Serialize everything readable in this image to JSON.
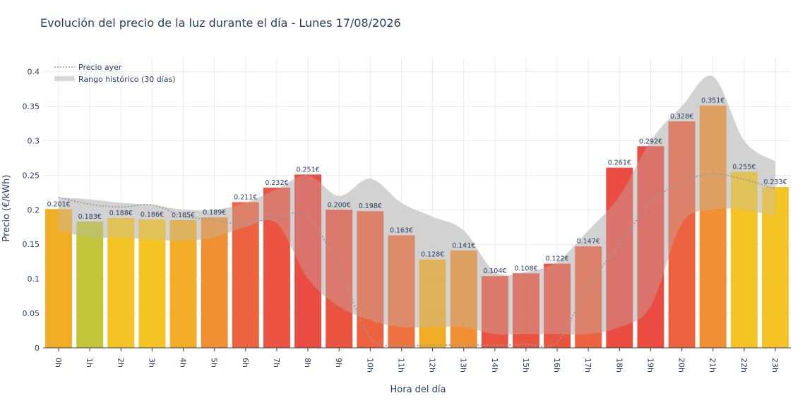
{
  "chart_data": {
    "type": "bar",
    "title": "Evolución del precio de la luz durante el día - Lunes 17/08/2026",
    "xlabel": "Hora del día",
    "ylabel": "Precio (€/kWh)",
    "ylim": [
      0,
      0.42
    ],
    "yticks": [
      0,
      0.05,
      0.1,
      0.15,
      0.2,
      0.25,
      0.3,
      0.35,
      0.4
    ],
    "ytick_labels": [
      "0",
      "0.05",
      "0.1",
      "0.15",
      "0.2",
      "0.25",
      "0.3",
      "0.35",
      "0.4"
    ],
    "grid": true,
    "legend_position": "top-left",
    "categories": [
      "0h",
      "1h",
      "2h",
      "3h",
      "4h",
      "5h",
      "6h",
      "7h",
      "8h",
      "9h",
      "10h",
      "11h",
      "12h",
      "13h",
      "14h",
      "15h",
      "16h",
      "17h",
      "18h",
      "19h",
      "20h",
      "21h",
      "22h",
      "23h"
    ],
    "series": [
      {
        "name": "",
        "values": [
          0.201,
          0.183,
          0.188,
          0.186,
          0.185,
          0.189,
          0.211,
          0.232,
          0.251,
          0.2,
          0.198,
          0.163,
          0.128,
          0.141,
          0.104,
          0.108,
          0.122,
          0.147,
          0.261,
          0.292,
          0.328,
          0.351,
          0.255,
          0.233
        ],
        "labels": [
          "0.201€",
          "0.183€",
          "0.188€",
          "0.186€",
          "0.185€",
          "0.189€",
          "0.211€",
          "0.232€",
          "0.251€",
          "0.200€",
          "0.198€",
          "0.163€",
          "0.128€",
          "0.141€",
          "0.104€",
          "0.108€",
          "0.122€",
          "0.147€",
          "0.261€",
          "0.292€",
          "0.328€",
          "0.351€",
          "0.255€",
          "0.233€"
        ],
        "colors": [
          "#f0a91a",
          "#bfc22e",
          "#f2c118",
          "#f2c118",
          "#f0a91a",
          "#ef8a28",
          "#ec5a35",
          "#ea4b37",
          "#ea4238",
          "#ea4b37",
          "#ec5a35",
          "#ec6a33",
          "#f0a91a",
          "#ef8a28",
          "#ea4b37",
          "#ea4b37",
          "#ea4b37",
          "#ec5a35",
          "#ea4238",
          "#ea4238",
          "#ec5a35",
          "#ef8a28",
          "#f2c118",
          "#f2c118"
        ]
      },
      {
        "name": "Precio ayer",
        "style": "dotted",
        "color": "#9a9a9a",
        "values": [
          0.218,
          0.208,
          0.204,
          0.207,
          0.191,
          0.185,
          0.179,
          0.19,
          0.19,
          0.115,
          0.015,
          0.004,
          0.004,
          0.004,
          0.004,
          0.005,
          0.009,
          0.09,
          0.15,
          0.21,
          0.24,
          0.252,
          0.244,
          0.23
        ]
      },
      {
        "name": "Rango histórico (30 días)",
        "style": "band",
        "color": "#d8d8d8",
        "upper": [
          0.218,
          0.215,
          0.21,
          0.207,
          0.2,
          0.2,
          0.21,
          0.23,
          0.25,
          0.22,
          0.245,
          0.21,
          0.19,
          0.17,
          0.11,
          0.11,
          0.125,
          0.17,
          0.22,
          0.3,
          0.35,
          0.393,
          0.3,
          0.27
        ],
        "lower": [
          0.17,
          0.16,
          0.16,
          0.157,
          0.155,
          0.16,
          0.175,
          0.18,
          0.1,
          0.06,
          0.04,
          0.03,
          0.03,
          0.03,
          0.02,
          0.02,
          0.02,
          0.02,
          0.03,
          0.06,
          0.18,
          0.2,
          0.2,
          0.19
        ]
      }
    ]
  }
}
